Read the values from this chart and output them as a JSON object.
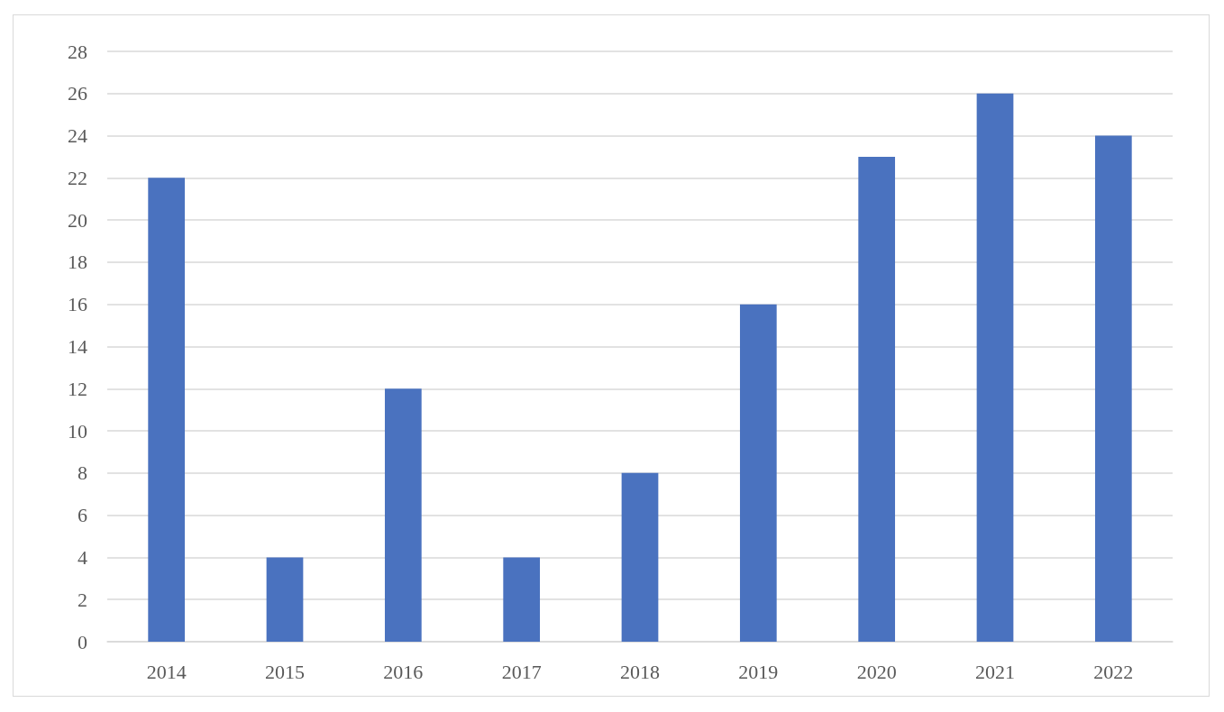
{
  "chart_data": {
    "type": "bar",
    "categories": [
      "2014",
      "2015",
      "2016",
      "2017",
      "2018",
      "2019",
      "2020",
      "2021",
      "2022"
    ],
    "values": [
      22,
      4,
      12,
      4,
      8,
      16,
      23,
      26,
      24
    ],
    "color": "#4a72bf",
    "ylim": [
      0,
      28
    ],
    "yticks": [
      0,
      2,
      4,
      6,
      8,
      10,
      12,
      14,
      16,
      18,
      20,
      22,
      24,
      26,
      28
    ],
    "grid": "y"
  }
}
